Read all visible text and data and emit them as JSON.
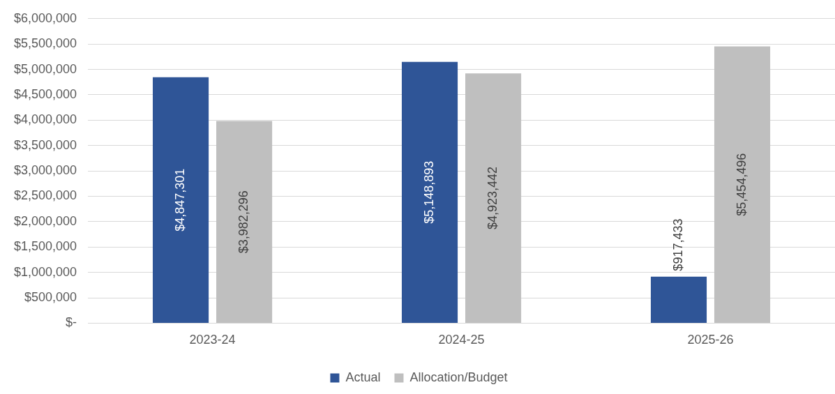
{
  "chart_data": {
    "type": "bar",
    "categories": [
      "2023-24",
      "2024-25",
      "2025-26"
    ],
    "series": [
      {
        "name": "Actual",
        "color": "#2f5597",
        "values": [
          4847301,
          5148893,
          917433
        ],
        "value_labels": [
          "$4,847,301",
          "$5,148,893",
          "$917,433"
        ]
      },
      {
        "name": "Allocation/Budget",
        "color": "#bfbfbf",
        "values": [
          3982296,
          4923442,
          5454496
        ],
        "value_labels": [
          "$3,982,296",
          "$4,923,442",
          "$5,454,496"
        ]
      }
    ],
    "ylim": [
      0,
      6000000
    ],
    "yticks": [
      {
        "value": 0,
        "label": "$-"
      },
      {
        "value": 500000,
        "label": "$500,000"
      },
      {
        "value": 1000000,
        "label": "$1,000,000"
      },
      {
        "value": 1500000,
        "label": "$1,500,000"
      },
      {
        "value": 2000000,
        "label": "$2,000,000"
      },
      {
        "value": 2500000,
        "label": "$2,500,000"
      },
      {
        "value": 3000000,
        "label": "$3,000,000"
      },
      {
        "value": 3500000,
        "label": "$3,500,000"
      },
      {
        "value": 4000000,
        "label": "$4,000,000"
      },
      {
        "value": 4500000,
        "label": "$4,500,000"
      },
      {
        "value": 5000000,
        "label": "$5,000,000"
      },
      {
        "value": 5500000,
        "label": "$5,500,000"
      },
      {
        "value": 6000000,
        "label": "$6,000,000"
      }
    ],
    "grid": "y",
    "legend": "bottom"
  }
}
